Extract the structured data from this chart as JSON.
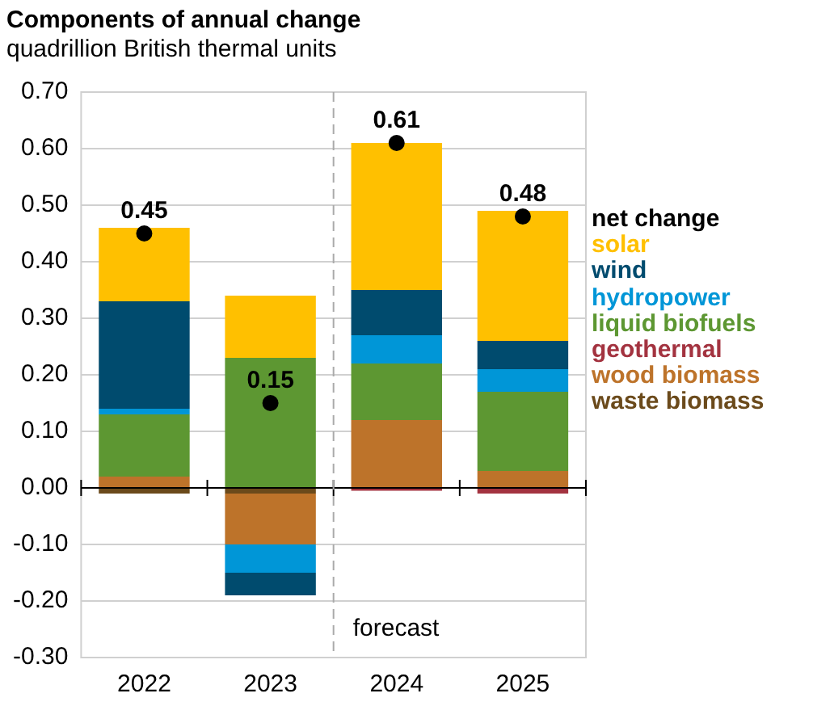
{
  "chart_data": {
    "type": "bar",
    "title": "Components of annual change",
    "subtitle": "quadrillion British thermal units",
    "categories": [
      "2022",
      "2023",
      "2024",
      "2025"
    ],
    "stacked": true,
    "series": [
      {
        "name": "waste biomass",
        "color": "#6b4a1b",
        "values": [
          -0.01,
          -0.01,
          0,
          0
        ]
      },
      {
        "name": "wood biomass",
        "color": "#bd732a",
        "values": [
          0.02,
          -0.09,
          0.12,
          0.03
        ]
      },
      {
        "name": "geothermal",
        "color": "#a33340",
        "values": [
          0,
          0,
          -0.005,
          -0.01
        ]
      },
      {
        "name": "liquid biofuels",
        "color": "#5d9732",
        "values": [
          0.11,
          0.23,
          0.1,
          0.14
        ]
      },
      {
        "name": "hydropower",
        "color": "#0096d7",
        "values": [
          0.01,
          -0.05,
          0.05,
          0.04
        ]
      },
      {
        "name": "wind",
        "color": "#004b6e",
        "values": [
          0.19,
          -0.04,
          0.08,
          0.05
        ]
      },
      {
        "name": "solar",
        "color": "#ffc000",
        "values": [
          0.13,
          0.11,
          0.26,
          0.23
        ]
      },
      {
        "name": "net change",
        "type": "scatter",
        "color": "#000000",
        "values": [
          0.45,
          0.15,
          0.61,
          0.48
        ],
        "value_labels": [
          "0.45",
          "0.15",
          "0.61",
          "0.48"
        ]
      }
    ],
    "ylim": [
      -0.3,
      0.7
    ],
    "yticks": [
      {
        "value": -0.3,
        "label": "-0.30"
      },
      {
        "value": -0.2,
        "label": "-0.20"
      },
      {
        "value": -0.1,
        "label": "-0.10"
      },
      {
        "value": 0,
        "label": "0.00"
      },
      {
        "value": 0.1,
        "label": "0.10"
      },
      {
        "value": 0.2,
        "label": "0.20"
      },
      {
        "value": 0.3,
        "label": "0.30"
      },
      {
        "value": 0.4,
        "label": "0.40"
      },
      {
        "value": 0.5,
        "label": "0.50"
      },
      {
        "value": 0.6,
        "label": "0.60"
      },
      {
        "value": 0.7,
        "label": "0.70"
      }
    ],
    "grid": "y",
    "legend": "right",
    "marker": "circle",
    "ref_lines": [
      {
        "axis": "x",
        "value": "2024",
        "label": "forecast",
        "line_style": "dashed",
        "color": "#aaaaaa"
      }
    ]
  }
}
